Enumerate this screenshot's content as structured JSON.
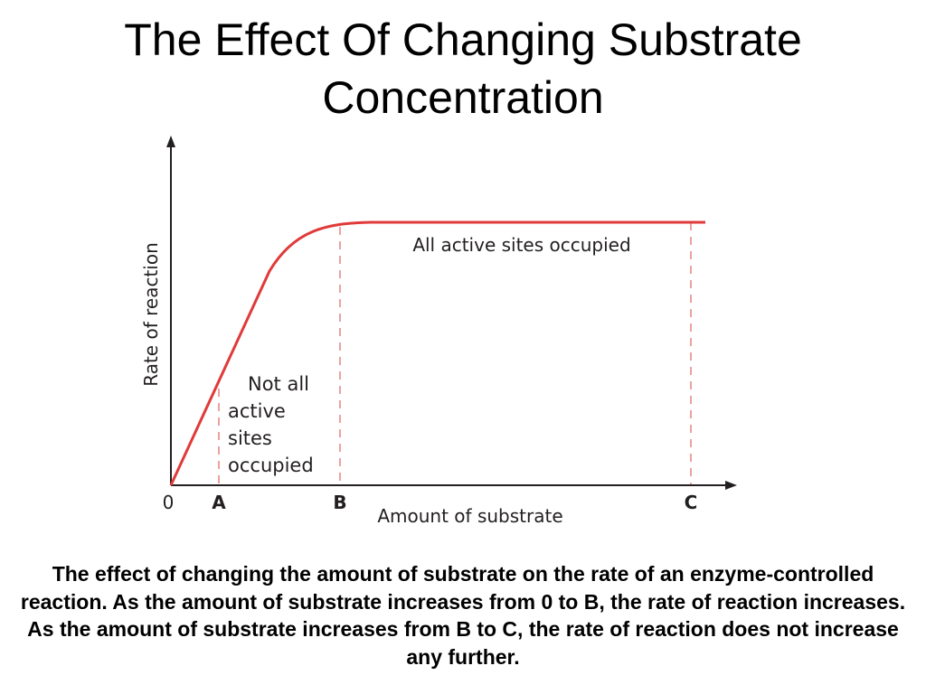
{
  "slide": {
    "title_line1": "The Effect Of Changing Substrate",
    "title_line2": "Concentration",
    "caption": "The effect of changing the amount of substrate on the rate of an enzyme-controlled reaction.  As the amount of substrate increases from 0 to B, the rate of reaction increases.  As the amount of substrate increases from B to C, the rate of reaction does not increase any further."
  },
  "diagram": {
    "ylabel": "Rate of reaction",
    "xlabel": "Amount of substrate",
    "x_ticks": [
      "0",
      "A",
      "B",
      "C"
    ],
    "label_saturated": "All active sites occupied",
    "label_unsaturated": [
      "Not all",
      "active",
      "sites",
      "occupied"
    ],
    "colors": {
      "curve": "#e03a3a",
      "guide_lines": "#e88a8a",
      "axes": "#231f20",
      "text": "#231f20"
    }
  }
}
